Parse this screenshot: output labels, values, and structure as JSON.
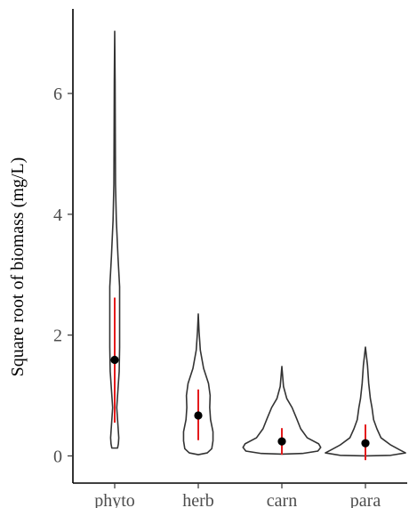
{
  "chart_data": {
    "type": "violin",
    "xlabel": "",
    "ylabel": "Square root of biomass (mg/L)",
    "categories": [
      "phyto",
      "herb",
      "carn",
      "para"
    ],
    "ylim": [
      -0.45,
      7.4
    ],
    "yticks": [
      0,
      2,
      4,
      6
    ],
    "grid": false,
    "colors": {
      "violin_outline": "#333333",
      "range_line": "#e41a1c",
      "point": "#000000"
    },
    "series": [
      {
        "category": "phyto",
        "min": 0.13,
        "max": 7.03,
        "summary_point": 1.59,
        "range_low": 0.55,
        "range_high": 2.62,
        "density": [
          [
            0.13,
            0.07
          ],
          [
            0.2,
            0.09
          ],
          [
            0.3,
            0.1
          ],
          [
            0.5,
            0.08
          ],
          [
            0.8,
            0.05
          ],
          [
            1.1,
            0.08
          ],
          [
            1.4,
            0.11
          ],
          [
            1.8,
            0.12
          ],
          [
            2.3,
            0.12
          ],
          [
            2.8,
            0.12
          ],
          [
            3.3,
            0.08
          ],
          [
            3.9,
            0.04
          ],
          [
            4.5,
            0.02
          ],
          [
            5.3,
            0.015
          ],
          [
            6.2,
            0.01
          ],
          [
            7.03,
            0.0
          ]
        ]
      },
      {
        "category": "herb",
        "min": 0.02,
        "max": 2.35,
        "summary_point": 0.67,
        "range_low": 0.26,
        "range_high": 1.1,
        "density": [
          [
            0.02,
            0.0
          ],
          [
            0.05,
            0.22
          ],
          [
            0.12,
            0.33
          ],
          [
            0.25,
            0.36
          ],
          [
            0.4,
            0.36
          ],
          [
            0.6,
            0.3
          ],
          [
            0.8,
            0.28
          ],
          [
            1.0,
            0.29
          ],
          [
            1.2,
            0.25
          ],
          [
            1.45,
            0.13
          ],
          [
            1.75,
            0.05
          ],
          [
            2.05,
            0.02
          ],
          [
            2.35,
            0.0
          ]
        ]
      },
      {
        "category": "carn",
        "min": 0.03,
        "max": 1.48,
        "summary_point": 0.24,
        "range_low": 0.02,
        "range_high": 0.46,
        "density": [
          [
            0.03,
            0.0
          ],
          [
            0.04,
            0.5
          ],
          [
            0.08,
            0.88
          ],
          [
            0.14,
            0.95
          ],
          [
            0.2,
            0.9
          ],
          [
            0.3,
            0.62
          ],
          [
            0.45,
            0.46
          ],
          [
            0.62,
            0.36
          ],
          [
            0.8,
            0.25
          ],
          [
            0.95,
            0.12
          ],
          [
            1.15,
            0.04
          ],
          [
            1.48,
            0.0
          ]
        ]
      },
      {
        "category": "para",
        "min": 0.0,
        "max": 1.8,
        "summary_point": 0.21,
        "range_low": -0.07,
        "range_high": 0.52,
        "density": [
          [
            0.0,
            0.0
          ],
          [
            0.01,
            0.62
          ],
          [
            0.05,
            0.98
          ],
          [
            0.1,
            0.84
          ],
          [
            0.18,
            0.62
          ],
          [
            0.3,
            0.38
          ],
          [
            0.45,
            0.28
          ],
          [
            0.6,
            0.2
          ],
          [
            0.8,
            0.16
          ],
          [
            0.95,
            0.12
          ],
          [
            1.2,
            0.08
          ],
          [
            1.5,
            0.05
          ],
          [
            1.8,
            0.0
          ]
        ]
      }
    ]
  }
}
